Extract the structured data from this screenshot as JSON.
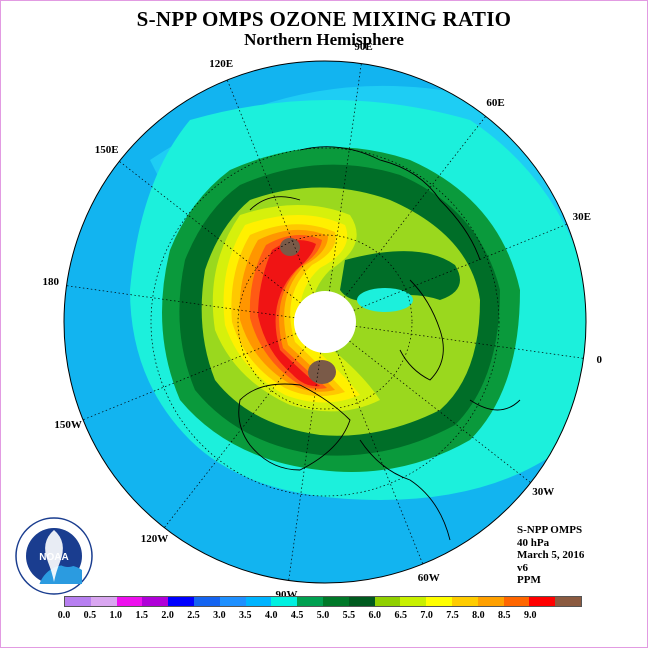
{
  "title": "S-NPP OMPS OZONE MIXING RATIO",
  "subtitle": "Northern Hemisphere",
  "longitude_labels": [
    {
      "text": "90E",
      "lon": 90
    },
    {
      "text": "60E",
      "lon": 60
    },
    {
      "text": "30E",
      "lon": 30
    },
    {
      "text": "0",
      "lon": 0
    },
    {
      "text": "30W",
      "lon": -30
    },
    {
      "text": "60W",
      "lon": -60
    },
    {
      "text": "90W",
      "lon": -90
    },
    {
      "text": "120W",
      "lon": -120
    },
    {
      "text": "150W",
      "lon": -150
    },
    {
      "text": "180",
      "lon": 180
    },
    {
      "text": "150E",
      "lon": 150
    },
    {
      "text": "120E",
      "lon": 120
    }
  ],
  "info": {
    "instrument": "S-NPP OMPS",
    "level": "40 hPa",
    "date": "March 5, 2016",
    "version": "v6",
    "units": "PPM"
  },
  "colorbar": {
    "colors": [
      "#b77ff0",
      "#d9a6f0",
      "#ee10ee",
      "#b000d8",
      "#0000ff",
      "#1464f0",
      "#1e90ff",
      "#00b4ff",
      "#00f0e0",
      "#00a050",
      "#007828",
      "#005a1e",
      "#90d000",
      "#c8f000",
      "#ffff00",
      "#ffcc00",
      "#ffa000",
      "#ff6600",
      "#ff0000",
      "#8b5a40"
    ],
    "labels": [
      "0.0",
      "0.5",
      "1.0",
      "1.5",
      "2.0",
      "2.5",
      "3.0",
      "3.5",
      "4.0",
      "4.5",
      "5.0",
      "5.5",
      "6.0",
      "6.5",
      "7.0",
      "7.5",
      "8.0",
      "8.5",
      "9.0"
    ]
  },
  "logo": {
    "text": "NOAA",
    "ring_text": "NATIONAL OCEANIC AND ATMOSPHERIC ADMINISTRATION · U.S. DEPARTMENT OF COMMERCE"
  },
  "map_colors": {
    "background": "#12b4f0",
    "light": "#1ecdf4",
    "cyan": "#1cf0dc",
    "green": "#0a9a3c",
    "dark_green": "#006e28",
    "lime": "#9ad81e",
    "yellow_green": "#d6f00c",
    "yellow": "#fff000",
    "gold": "#ffc800",
    "orange": "#ff9600",
    "red_orange": "#ff5a14",
    "red": "#f01414",
    "brown": "#7a5a48",
    "pole": "#ffffff"
  }
}
